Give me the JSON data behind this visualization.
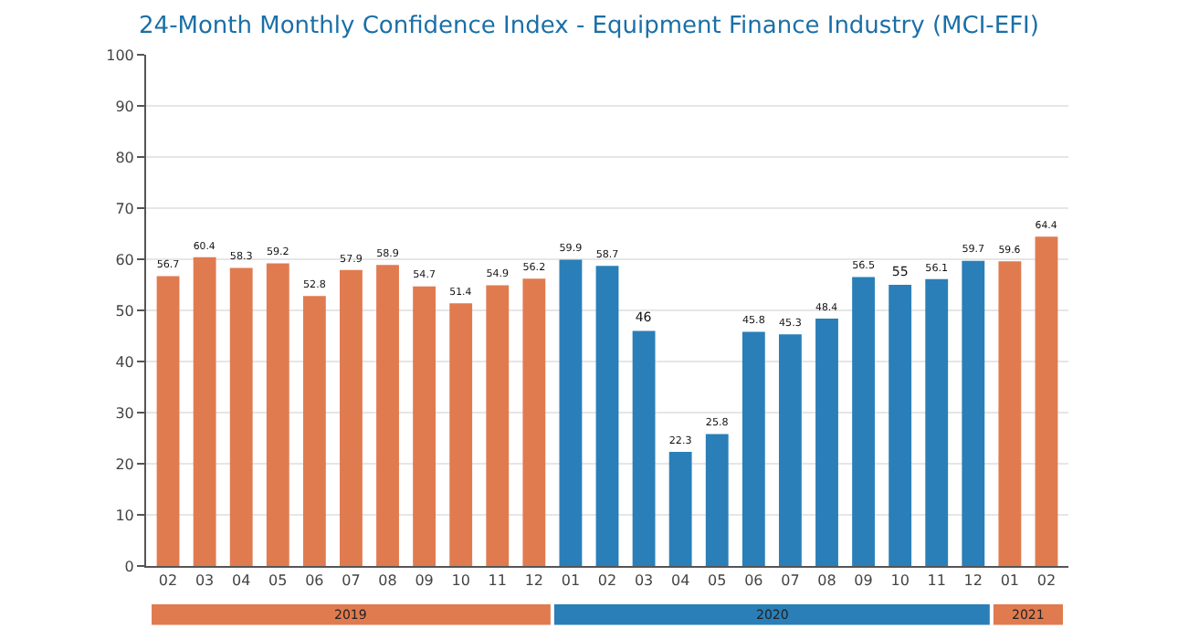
{
  "chart_data": {
    "type": "bar",
    "title": "24-Month Monthly Confidence Index - Equipment Finance Industry (MCI-EFI)",
    "categories": [
      "02",
      "03",
      "04",
      "05",
      "06",
      "07",
      "08",
      "09",
      "10",
      "11",
      "12",
      "01",
      "02",
      "03",
      "04",
      "05",
      "06",
      "07",
      "08",
      "09",
      "10",
      "11",
      "12",
      "01",
      "02"
    ],
    "values": [
      56.7,
      60.4,
      58.3,
      59.2,
      52.8,
      57.9,
      58.9,
      54.7,
      51.4,
      54.9,
      56.2,
      59.9,
      58.7,
      46,
      22.3,
      25.8,
      45.8,
      45.3,
      48.4,
      56.5,
      55,
      56.1,
      59.7,
      59.6,
      64.4
    ],
    "colors": [
      "#e07b50",
      "#e07b50",
      "#e07b50",
      "#e07b50",
      "#e07b50",
      "#e07b50",
      "#e07b50",
      "#e07b50",
      "#e07b50",
      "#e07b50",
      "#e07b50",
      "#2a7fb8",
      "#2a7fb8",
      "#2a7fb8",
      "#2a7fb8",
      "#2a7fb8",
      "#2a7fb8",
      "#2a7fb8",
      "#2a7fb8",
      "#2a7fb8",
      "#2a7fb8",
      "#2a7fb8",
      "#2a7fb8",
      "#e07b50",
      "#e07b50"
    ],
    "annotations": [
      "2019",
      "2020",
      "2021"
    ],
    "ylim": [
      0,
      100
    ],
    "yticks": [
      0,
      10,
      20,
      30,
      40,
      50,
      60,
      70,
      80,
      90,
      100
    ],
    "grid": "y",
    "data_labels": true
  }
}
